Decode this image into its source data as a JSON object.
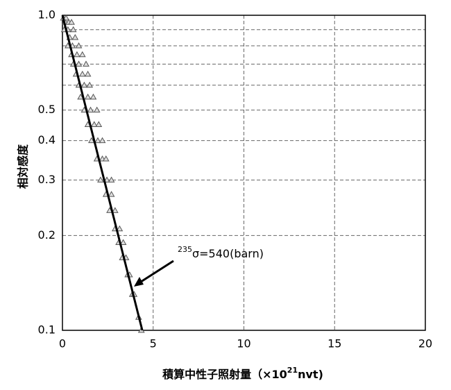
{
  "chart_data": {
    "type": "scatter",
    "xlabel": {
      "main": "積算中性子照射量（×10",
      "sup": "21",
      "tail": "nvt)"
    },
    "ylabel": "相対感度",
    "annotation": {
      "sup": "235",
      "text": "σ=540(barn)"
    },
    "xlim": [
      0,
      20
    ],
    "xticks": [
      0,
      5,
      10,
      15,
      20
    ],
    "ylim": [
      0.1,
      1
    ],
    "ylog": true,
    "yticks": [
      0.1,
      0.2,
      0.3,
      0.4,
      0.5,
      {
        "value": 1,
        "label": "1.0"
      }
    ],
    "yminor_grid": [
      0.6,
      0.7,
      0.8,
      0.9
    ],
    "grid": true,
    "series": [
      {
        "kind": "scatter",
        "color": "#555555",
        "x": [
          0.05,
          0.2,
          0.15,
          0.35,
          0.5,
          0.1,
          0.3,
          0.6,
          0.4,
          0.7,
          0.3,
          0.55,
          0.9,
          0.5,
          0.8,
          1.1,
          0.6,
          0.9,
          1.3,
          0.75,
          1.1,
          1.4,
          0.9,
          1.2,
          1.5,
          1.0,
          1.4,
          1.7,
          1.2,
          1.55,
          1.9,
          1.4,
          1.75,
          2.0,
          1.6,
          1.95,
          2.2,
          1.9,
          2.2,
          2.4,
          2.1,
          2.45,
          2.7,
          2.4,
          2.7,
          2.6,
          2.9,
          2.9,
          3.15,
          3.1,
          3.35,
          3.3,
          3.5,
          3.6,
          3.7,
          3.85,
          3.95,
          4.2,
          4.35
        ],
        "y": [
          0.98,
          0.98,
          0.95,
          0.95,
          0.95,
          0.9,
          0.9,
          0.9,
          0.85,
          0.85,
          0.8,
          0.8,
          0.8,
          0.75,
          0.75,
          0.75,
          0.7,
          0.7,
          0.7,
          0.65,
          0.65,
          0.65,
          0.6,
          0.6,
          0.6,
          0.55,
          0.55,
          0.55,
          0.5,
          0.5,
          0.5,
          0.45,
          0.45,
          0.45,
          0.4,
          0.4,
          0.4,
          0.35,
          0.35,
          0.35,
          0.3,
          0.3,
          0.3,
          0.27,
          0.27,
          0.24,
          0.24,
          0.21,
          0.21,
          0.19,
          0.19,
          0.17,
          0.17,
          0.15,
          0.15,
          0.13,
          0.13,
          0.11,
          0.1
        ]
      },
      {
        "kind": "line",
        "color": "#000000",
        "x": [
          0,
          4.4
        ],
        "y": [
          1,
          0.1
        ]
      }
    ]
  }
}
